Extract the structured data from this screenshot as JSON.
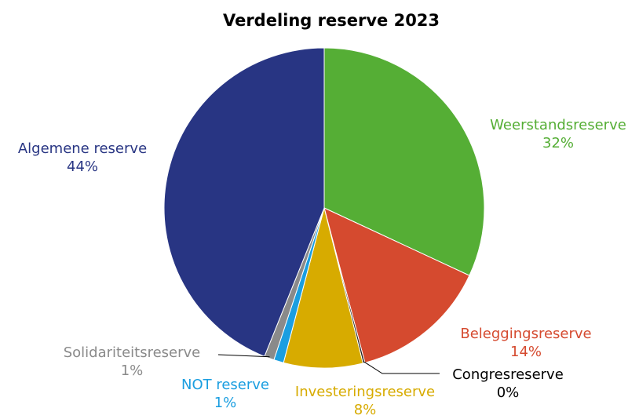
{
  "chart_data": {
    "type": "pie",
    "title": "Verdeling reserve 2023",
    "slices": [
      {
        "label": "Weerstandsreserve",
        "value": 32,
        "display": "32%",
        "color": "#55ae35",
        "label_color": "#55ae35"
      },
      {
        "label": "Beleggingsreserve",
        "value": 14,
        "display": "14%",
        "color": "#d54a2f",
        "label_color": "#d54a2f"
      },
      {
        "label": "Congresreserve",
        "value": 0.2,
        "display": "0%",
        "color": "#222222",
        "label_color": "#000000"
      },
      {
        "label": "Investeringsreserve",
        "value": 8,
        "display": "8%",
        "color": "#d7ab00",
        "label_color": "#d7ab00"
      },
      {
        "label": "NOT reserve",
        "value": 1,
        "display": "1%",
        "color": "#1a9ee0",
        "label_color": "#1a9ee0"
      },
      {
        "label": "Solidariteitsreserve",
        "value": 1,
        "display": "1%",
        "color": "#8a8a8a",
        "label_color": "#8a8a8a"
      },
      {
        "label": "Algemene reserve",
        "value": 44,
        "display": "44%",
        "color": "#283583",
        "label_color": "#283583"
      }
    ]
  }
}
